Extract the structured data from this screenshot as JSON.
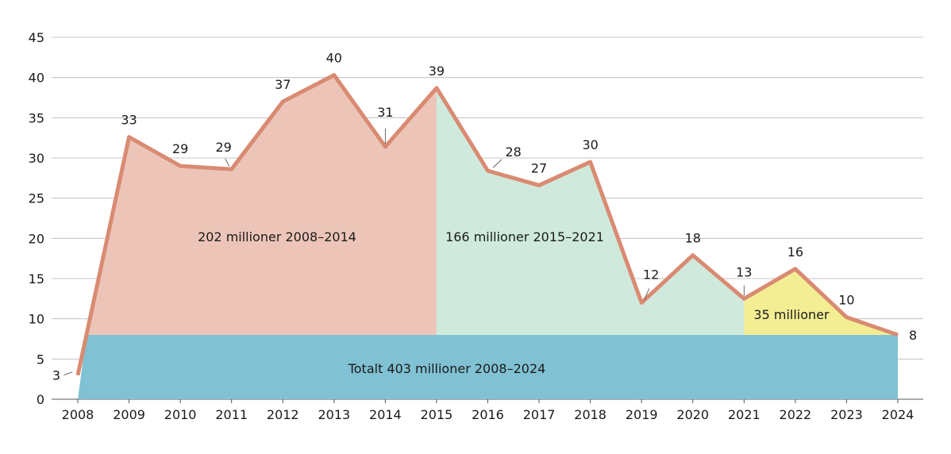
{
  "chart_data": {
    "type": "area",
    "categories": [
      "2008",
      "2009",
      "2010",
      "2011",
      "2012",
      "2013",
      "2014",
      "2015",
      "2016",
      "2017",
      "2018",
      "2019",
      "2020",
      "2021",
      "2022",
      "2023",
      "2024"
    ],
    "values": [
      3,
      32.6,
      29.0,
      28.6,
      37.0,
      40.3,
      31.4,
      38.7,
      28.4,
      26.6,
      29.5,
      12.0,
      17.9,
      12.5,
      16.2,
      10.2,
      8.0
    ],
    "data_labels": [
      "3",
      "33",
      "29",
      "29",
      "37",
      "40",
      "31",
      "39",
      "28",
      "27",
      "30",
      "12",
      "18",
      "13",
      "16",
      "10",
      "8"
    ],
    "ylim": [
      0,
      45
    ],
    "yticks": [
      "0",
      "5",
      "10",
      "15",
      "20",
      "25",
      "30",
      "35",
      "40",
      "45"
    ],
    "grid": true,
    "baseline_band": {
      "value": 8,
      "label": "Totalt 403 millioner 2008–2024",
      "color": "#80c1d3"
    },
    "regions": [
      {
        "from": "2008",
        "to": "2015",
        "label": "202 millioner 2008–2014",
        "color": "#ecc5b8"
      },
      {
        "from": "2015",
        "to": "2021",
        "label": "166 millioner 2015–2021",
        "color": "#cfeadc"
      },
      {
        "from": "2021",
        "to": "2024",
        "label": "35 millioner",
        "color": "#f3ee93"
      }
    ],
    "line_color": "#d98b72"
  }
}
